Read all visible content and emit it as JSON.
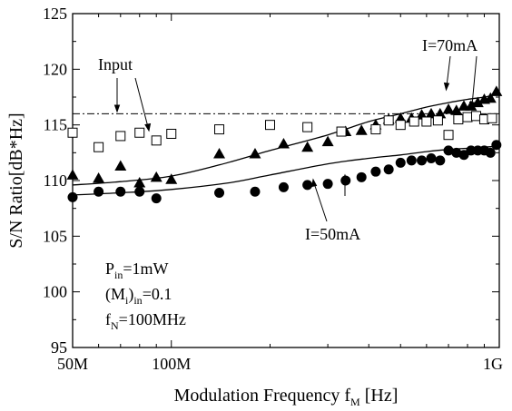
{
  "chart_data": {
    "type": "scatter",
    "xscale": "log",
    "xlim": [
      50,
      1000
    ],
    "ylim": [
      95,
      125
    ],
    "x_ticks": [
      {
        "value": 50,
        "label": "50M"
      },
      {
        "value": 100,
        "label": "100M"
      },
      {
        "value": 1000,
        "label": "1G"
      }
    ],
    "y_ticks": [
      95,
      100,
      105,
      110,
      115,
      120,
      125
    ],
    "xlabel": {
      "main": "Modulation Frequency f",
      "sub": "M",
      "unit": " [Hz]"
    },
    "ylabel": "S/N Ratio[dB*Hz]",
    "input_level": 116,
    "series": [
      {
        "name": "I=70mA",
        "marker": "filled-triangle",
        "points": [
          [
            50,
            110.5
          ],
          [
            60,
            110.2
          ],
          [
            70,
            111.3
          ],
          [
            80,
            109.8
          ],
          [
            90,
            110.3
          ],
          [
            100,
            110.1
          ],
          [
            140,
            112.4
          ],
          [
            180,
            112.4
          ],
          [
            220,
            113.3
          ],
          [
            260,
            113.0
          ],
          [
            300,
            113.5
          ],
          [
            340,
            114.4
          ],
          [
            380,
            114.5
          ],
          [
            420,
            115.0
          ],
          [
            460,
            115.5
          ],
          [
            500,
            115.6
          ],
          [
            540,
            115.6
          ],
          [
            580,
            115.9
          ],
          [
            620,
            116.0
          ],
          [
            660,
            116.0
          ],
          [
            700,
            116.4
          ],
          [
            740,
            116.3
          ],
          [
            780,
            116.7
          ],
          [
            820,
            116.7
          ],
          [
            860,
            117.0
          ],
          [
            900,
            117.3
          ],
          [
            940,
            117.4
          ],
          [
            980,
            118.0
          ]
        ]
      },
      {
        "name": "I=50mA",
        "marker": "filled-circle",
        "points": [
          [
            50,
            108.5
          ],
          [
            60,
            109.0
          ],
          [
            70,
            109.0
          ],
          [
            80,
            109.0
          ],
          [
            90,
            108.4
          ],
          [
            140,
            108.9
          ],
          [
            180,
            109.0
          ],
          [
            220,
            109.4
          ],
          [
            260,
            109.6
          ],
          [
            300,
            109.7
          ],
          [
            340,
            110.0
          ],
          [
            380,
            110.3
          ],
          [
            420,
            110.8
          ],
          [
            460,
            111.0
          ],
          [
            500,
            111.6
          ],
          [
            540,
            111.8
          ],
          [
            580,
            111.8
          ],
          [
            620,
            112.0
          ],
          [
            660,
            111.8
          ],
          [
            700,
            112.7
          ],
          [
            740,
            112.5
          ],
          [
            780,
            112.3
          ],
          [
            820,
            112.7
          ],
          [
            860,
            112.7
          ],
          [
            900,
            112.7
          ],
          [
            940,
            112.5
          ],
          [
            980,
            113.2
          ]
        ]
      },
      {
        "name": "Input",
        "marker": "open-square",
        "points": [
          [
            50,
            114.3
          ],
          [
            60,
            113.0
          ],
          [
            70,
            114.0
          ],
          [
            80,
            114.3
          ],
          [
            90,
            113.6
          ],
          [
            100,
            114.2
          ],
          [
            140,
            114.6
          ],
          [
            200,
            115.0
          ],
          [
            260,
            114.8
          ],
          [
            330,
            114.4
          ],
          [
            420,
            114.6
          ],
          [
            460,
            115.4
          ],
          [
            500,
            115.0
          ],
          [
            550,
            115.3
          ],
          [
            600,
            115.3
          ],
          [
            650,
            115.4
          ],
          [
            700,
            114.1
          ],
          [
            750,
            115.5
          ],
          [
            800,
            115.7
          ],
          [
            850,
            115.8
          ],
          [
            900,
            115.5
          ],
          [
            950,
            115.6
          ]
        ]
      }
    ],
    "fits": [
      {
        "series": "I=70mA",
        "points": [
          [
            50,
            109.6
          ],
          [
            70,
            109.9
          ],
          [
            100,
            110.4
          ],
          [
            140,
            111.4
          ],
          [
            200,
            112.7
          ],
          [
            300,
            114.1
          ],
          [
            400,
            115.3
          ],
          [
            500,
            116.0
          ],
          [
            600,
            116.6
          ],
          [
            700,
            117.0
          ],
          [
            800,
            117.3
          ],
          [
            900,
            117.5
          ],
          [
            1000,
            117.8
          ]
        ]
      },
      {
        "series": "I=50mA",
        "points": [
          [
            50,
            108.7
          ],
          [
            70,
            108.9
          ],
          [
            100,
            109.2
          ],
          [
            150,
            109.8
          ],
          [
            200,
            110.5
          ],
          [
            300,
            111.5
          ],
          [
            400,
            112.0
          ],
          [
            500,
            112.3
          ],
          [
            600,
            112.6
          ],
          [
            700,
            112.8
          ],
          [
            800,
            112.9
          ],
          [
            900,
            113.0
          ],
          [
            1000,
            113.1
          ]
        ]
      }
    ]
  },
  "annotations": {
    "input_label": "Input",
    "i70_label": "I=70mA",
    "i50_label": "I=50mA",
    "params": {
      "p_main": "P",
      "p_sub": "in",
      "p_rest": "=1mW",
      "m_main": "(M",
      "m_sub1": "i",
      "m_mid": ")",
      "m_sub2": "in",
      "m_rest": "=0.1",
      "f_main": "f",
      "f_sub": "N",
      "f_rest": "=100MHz"
    }
  }
}
